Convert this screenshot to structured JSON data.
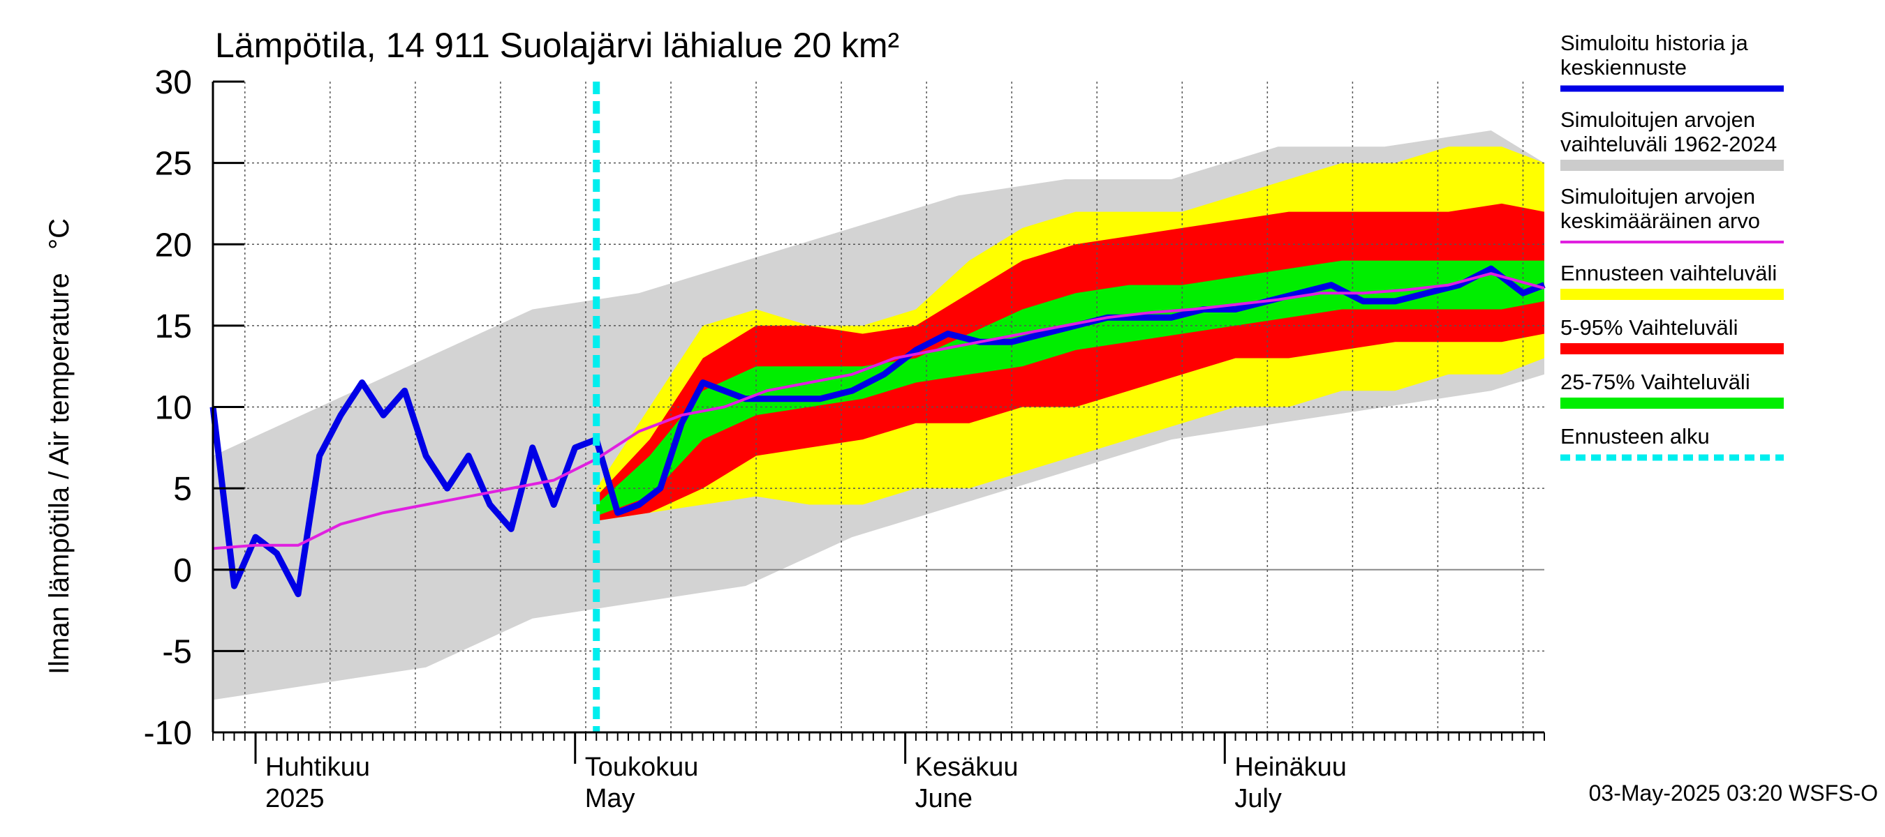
{
  "chart_data": {
    "type": "area",
    "title": "Lämpötila, 14 911 Suolajärvi lähialue 20 km²",
    "ylabel": "Ilman lämpötila / Air temperature   °C",
    "ylim": [
      -10,
      30
    ],
    "yticks": [
      -10,
      -5,
      0,
      5,
      10,
      15,
      20,
      25,
      30
    ],
    "xlim": [
      "2025-03-28",
      "2025-07-31"
    ],
    "grid": true,
    "legend_position": "right",
    "forecast_start": "2025-05-03",
    "x_axis_labels": [
      {
        "date": "2025-04-01",
        "line1": "Huhtikuu",
        "line2": "2025"
      },
      {
        "date": "2025-05-01",
        "line1": "Toukokuu",
        "line2": "May"
      },
      {
        "date": "2025-06-01",
        "line1": "Kesäkuu",
        "line2": "June"
      },
      {
        "date": "2025-07-01",
        "line1": "Heinäkuu",
        "line2": "July"
      }
    ],
    "footer": "03-May-2025 03:20 WSFS-O",
    "legend": [
      {
        "label_lines": [
          "Simuloitu historia ja",
          "keskiennuste"
        ],
        "color": "#0000e6",
        "style": "line"
      },
      {
        "label_lines": [
          "Simuloitujen arvojen",
          "vaihteluväli 1962-2024"
        ],
        "color": "#cccccc",
        "style": "band"
      },
      {
        "label_lines": [
          "Simuloitujen arvojen",
          "keskimääräinen arvo"
        ],
        "color": "#e020e0",
        "style": "line"
      },
      {
        "label_lines": [
          "Ennusteen vaihteluväli"
        ],
        "color": "#ffff00",
        "style": "band"
      },
      {
        "label_lines": [
          "5-95% Vaihteluväli"
        ],
        "color": "#ff0000",
        "style": "band"
      },
      {
        "label_lines": [
          "25-75% Vaihteluväli"
        ],
        "color": "#00ee00",
        "style": "band"
      },
      {
        "label_lines": [
          "Ennusteen alku"
        ],
        "color": "#00eeee",
        "style": "dashed"
      }
    ],
    "series": [
      {
        "name": "Simuloitu historia ja keskiennuste",
        "x": [
          "2025-03-28",
          "2025-03-30",
          "2025-04-01",
          "2025-04-03",
          "2025-04-05",
          "2025-04-07",
          "2025-04-09",
          "2025-04-11",
          "2025-04-13",
          "2025-04-15",
          "2025-04-17",
          "2025-04-19",
          "2025-04-21",
          "2025-04-23",
          "2025-04-25",
          "2025-04-27",
          "2025-04-29",
          "2025-05-01",
          "2025-05-03",
          "2025-05-05",
          "2025-05-07",
          "2025-05-09",
          "2025-05-11",
          "2025-05-13",
          "2025-05-15",
          "2025-05-17",
          "2025-05-19",
          "2025-05-21",
          "2025-05-24",
          "2025-05-27",
          "2025-05-30",
          "2025-06-02",
          "2025-06-05",
          "2025-06-08",
          "2025-06-11",
          "2025-06-14",
          "2025-06-17",
          "2025-06-20",
          "2025-06-23",
          "2025-06-26",
          "2025-06-29",
          "2025-07-02",
          "2025-07-05",
          "2025-07-08",
          "2025-07-11",
          "2025-07-14",
          "2025-07-17",
          "2025-07-20",
          "2025-07-23",
          "2025-07-26",
          "2025-07-29",
          "2025-07-31"
        ],
        "y": [
          10,
          -1,
          2,
          1,
          -1.5,
          7,
          9.5,
          11.5,
          9.5,
          11,
          7,
          5,
          7,
          4,
          2.5,
          7.5,
          4,
          7.5,
          8,
          3.5,
          4,
          5,
          9,
          11.5,
          11,
          10.5,
          10.5,
          10.5,
          10.5,
          11,
          12,
          13.5,
          14.5,
          14,
          14,
          14.5,
          15,
          15.5,
          15.5,
          15.5,
          16,
          16,
          16.5,
          17,
          17.5,
          16.5,
          16.5,
          17,
          17.5,
          18.5,
          17,
          17.5
        ]
      },
      {
        "name": "Simuloitujen arvojen keskimääräinen arvo",
        "x": [
          "2025-03-28",
          "2025-04-01",
          "2025-04-05",
          "2025-04-09",
          "2025-04-13",
          "2025-04-17",
          "2025-04-21",
          "2025-04-25",
          "2025-04-29",
          "2025-05-03",
          "2025-05-07",
          "2025-05-11",
          "2025-05-15",
          "2025-05-19",
          "2025-05-23",
          "2025-05-27",
          "2025-05-31",
          "2025-06-04",
          "2025-06-08",
          "2025-06-12",
          "2025-06-16",
          "2025-06-20",
          "2025-06-24",
          "2025-06-28",
          "2025-07-02",
          "2025-07-06",
          "2025-07-10",
          "2025-07-14",
          "2025-07-18",
          "2025-07-22",
          "2025-07-26",
          "2025-07-31"
        ],
        "y": [
          1.3,
          1.5,
          1.5,
          2.8,
          3.5,
          4,
          4.5,
          5,
          5.5,
          6.8,
          8.5,
          9.5,
          10,
          11,
          11.5,
          12,
          13,
          13.5,
          14,
          14.5,
          15,
          15.5,
          15.8,
          16,
          16.3,
          16.6,
          17,
          17,
          17.2,
          17.5,
          18.2,
          17.3
        ]
      }
    ],
    "bands": [
      {
        "name": "Simuloitujen arvojen vaihteluväli 1962-2024",
        "x": [
          "2025-03-28",
          "2025-04-07",
          "2025-04-17",
          "2025-04-27",
          "2025-05-07",
          "2025-05-17",
          "2025-05-27",
          "2025-06-06",
          "2025-06-16",
          "2025-06-26",
          "2025-07-06",
          "2025-07-16",
          "2025-07-26",
          "2025-07-31"
        ],
        "low": [
          -8,
          -7,
          -6,
          -3,
          -2,
          -1,
          2,
          4,
          6,
          8,
          9,
          10,
          11,
          12
        ],
        "high": [
          7,
          10,
          13,
          16,
          17,
          19,
          21,
          23,
          24,
          24,
          26,
          26,
          27,
          25
        ]
      },
      {
        "name": "Ennusteen vaihteluväli",
        "x": [
          "2025-05-03",
          "2025-05-08",
          "2025-05-13",
          "2025-05-18",
          "2025-05-23",
          "2025-05-28",
          "2025-06-02",
          "2025-06-07",
          "2025-06-12",
          "2025-06-17",
          "2025-06-22",
          "2025-06-27",
          "2025-07-02",
          "2025-07-07",
          "2025-07-12",
          "2025-07-17",
          "2025-07-22",
          "2025-07-27",
          "2025-07-31"
        ],
        "low": [
          3,
          3.5,
          4,
          4.5,
          4,
          4,
          5,
          5,
          6,
          7,
          8,
          9,
          10,
          10,
          11,
          11,
          12,
          12,
          13
        ],
        "high": [
          5,
          10,
          15,
          16,
          15,
          15,
          16,
          19,
          21,
          22,
          22,
          22,
          23,
          24,
          25,
          25,
          26,
          26,
          25
        ]
      },
      {
        "name": "5-95% Vaihteluväli",
        "x": [
          "2025-05-03",
          "2025-05-08",
          "2025-05-13",
          "2025-05-18",
          "2025-05-23",
          "2025-05-28",
          "2025-06-02",
          "2025-06-07",
          "2025-06-12",
          "2025-06-17",
          "2025-06-22",
          "2025-06-27",
          "2025-07-02",
          "2025-07-07",
          "2025-07-12",
          "2025-07-17",
          "2025-07-22",
          "2025-07-27",
          "2025-07-31"
        ],
        "low": [
          3,
          3.5,
          5,
          7,
          7.5,
          8,
          9,
          9,
          10,
          10,
          11,
          12,
          13,
          13,
          13.5,
          14,
          14,
          14,
          14.5
        ],
        "high": [
          4.5,
          8,
          13,
          15,
          15,
          14.5,
          15,
          17,
          19,
          20,
          20.5,
          21,
          21.5,
          22,
          22,
          22,
          22,
          22.5,
          22
        ]
      },
      {
        "name": "25-75% Vaihteluväli",
        "x": [
          "2025-05-03",
          "2025-05-08",
          "2025-05-13",
          "2025-05-18",
          "2025-05-23",
          "2025-05-28",
          "2025-06-02",
          "2025-06-07",
          "2025-06-12",
          "2025-06-17",
          "2025-06-22",
          "2025-06-27",
          "2025-07-02",
          "2025-07-07",
          "2025-07-12",
          "2025-07-17",
          "2025-07-22",
          "2025-07-27",
          "2025-07-31"
        ],
        "low": [
          3.3,
          4.5,
          8,
          9.5,
          10,
          10.5,
          11.5,
          12,
          12.5,
          13.5,
          14,
          14.5,
          15,
          15.5,
          16,
          16,
          16,
          16,
          16.5
        ],
        "high": [
          4,
          7,
          11,
          12.5,
          12.5,
          12.5,
          13,
          14.5,
          16,
          17,
          17.5,
          17.5,
          18,
          18.5,
          19,
          19,
          19,
          19,
          19
        ]
      }
    ]
  }
}
